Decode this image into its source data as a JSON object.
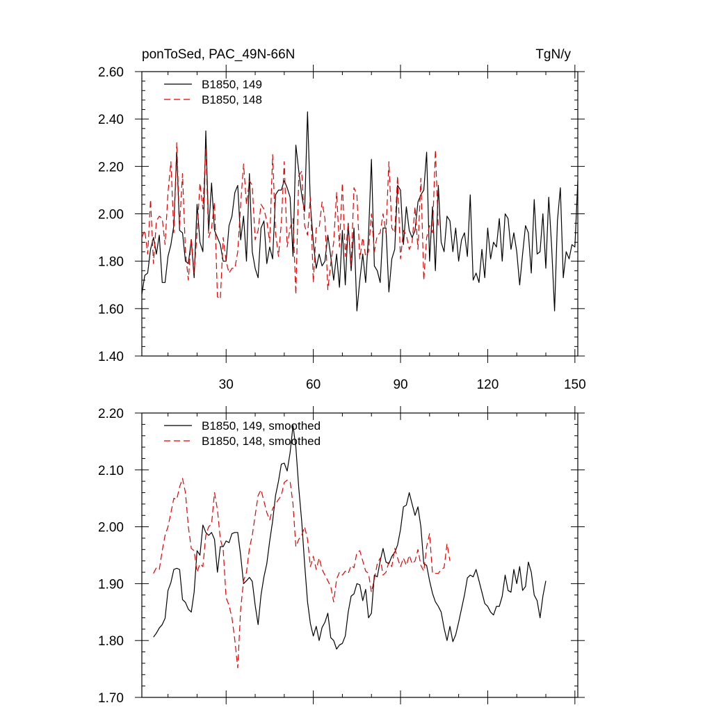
{
  "header": {
    "title_left": "ponToSed, PAC_49N-66N",
    "title_right": "TgN/y"
  },
  "chart_data": [
    {
      "type": "line",
      "panel": "top",
      "xlim": [
        1,
        151
      ],
      "ylim": [
        1.4,
        2.6
      ],
      "xticks": [
        30,
        60,
        90,
        120,
        150
      ],
      "xtick_labels": [
        "30",
        "60",
        "90",
        "120",
        "150"
      ],
      "yticks": [
        1.4,
        1.6,
        1.8,
        2.0,
        2.2,
        2.4,
        2.6
      ],
      "ytick_labels": [
        "1.40",
        "1.60",
        "1.80",
        "2.00",
        "2.20",
        "2.40",
        "2.60"
      ],
      "legend_position": "top-left",
      "series": [
        {
          "name": "B1850, 149",
          "color": "#000000",
          "dash": "solid",
          "x_start": 1,
          "values": [
            1.66,
            1.74,
            1.75,
            1.85,
            1.9,
            1.83,
            1.91,
            1.71,
            1.71,
            1.82,
            1.87,
            1.95,
            2.26,
            1.93,
            1.92,
            1.8,
            1.79,
            1.89,
            1.73,
            2.04,
            1.88,
            1.84,
            2.35,
            1.93,
            2.13,
            1.93,
            1.9,
            1.87,
            1.8,
            1.8,
            1.95,
            1.99,
            2.09,
            2.12,
            1.89,
            1.99,
            1.8,
            2.17,
            1.84,
            1.77,
            1.73,
            1.94,
            1.97,
            1.79,
            1.86,
            1.81,
            2.08,
            2.1,
            2.1,
            2.14,
            2.11,
            2.07,
            1.82,
            2.29,
            2.18,
            2.08,
            2.01,
            2.43,
            2.04,
            1.88,
            1.77,
            1.83,
            1.78,
            1.8,
            1.91,
            1.82,
            1.72,
            1.83,
            1.69,
            1.93,
            1.7,
            1.96,
            1.76,
            1.94,
            1.59,
            1.72,
            1.83,
            1.71,
            1.91,
            2.23,
            1.78,
            1.76,
            1.71,
            1.94,
            1.94,
            1.67,
            1.81,
            1.85,
            2.12,
            2.1,
            1.87,
            2.03,
            1.93,
            1.9,
            1.93,
            2.05,
            2.08,
            2.1,
            2.26,
            1.8,
            2.03,
            1.76,
            2.12,
            1.88,
            1.84,
            1.99,
            1.97,
            1.84,
            1.94,
            1.8,
            1.89,
            1.92,
            1.82,
            2.08,
            1.72,
            1.75,
            1.71,
            1.85,
            1.73,
            1.94,
            1.81,
            1.88,
            1.86,
            1.98,
            1.8,
            2.0,
            1.98,
            1.85,
            1.92,
            1.84,
            1.7,
            1.83,
            1.95,
            1.92,
            1.75,
            2.06,
            1.83,
            1.84,
            2.0,
            1.77,
            2.07,
            1.86,
            1.59,
            1.97,
            2.11,
            1.73,
            1.84,
            1.81,
            1.87,
            1.86,
            2.14
          ]
        },
        {
          "name": "B1850, 148",
          "color": "#e00000",
          "dash": "dashed",
          "x_start": 1,
          "values": [
            1.9,
            1.93,
            1.83,
            2.06,
            1.79,
            1.97,
            1.99,
            1.98,
            1.87,
            2.09,
            2.22,
            1.92,
            2.3,
            1.95,
            2.17,
            1.84,
            1.72,
            1.9,
            1.75,
            1.92,
            2.13,
            2.02,
            2.28,
            1.9,
            1.94,
            2.05,
            1.65,
            1.64,
            1.9,
            1.8,
            1.75,
            1.77,
            1.77,
            1.84,
            2.04,
            2.21,
            2.04,
            2.14,
            2.12,
            1.89,
            1.93,
            2.04,
            2.02,
            1.97,
            1.88,
            2.25,
            1.92,
            1.82,
            1.96,
            2.22,
            1.86,
            1.94,
            1.98,
            1.66,
            2.16,
            2.18,
            1.95,
            1.91,
            2.07,
            1.71,
            1.94,
            1.94,
            2.05,
            1.98,
            1.68,
            1.79,
            1.88,
            2.09,
            1.86,
            2.13,
            1.82,
            1.96,
            1.78,
            2.11,
            2.08,
            1.81,
            1.9,
            1.82,
            1.84,
            2.0,
            1.84,
            1.91,
            1.92,
            2.0,
            1.92,
            2.22,
            1.94,
            1.92,
            2.16,
            1.81,
            1.93,
            1.91,
            1.85,
            1.88,
            2.03,
            1.85,
            2.15,
            1.72,
            1.9,
            1.95,
            1.92,
            2.27,
            1.94
          ]
        }
      ]
    },
    {
      "type": "line",
      "panel": "bottom",
      "xlim": [
        1,
        151
      ],
      "ylim": [
        1.7,
        2.2
      ],
      "xticks": [
        30,
        60,
        90,
        120,
        150
      ],
      "yticks": [
        1.7,
        1.8,
        1.9,
        2.0,
        2.1,
        2.2
      ],
      "ytick_labels": [
        "1.70",
        "1.80",
        "1.90",
        "2.00",
        "2.10",
        "2.20"
      ],
      "legend_position": "top-left",
      "series": [
        {
          "name": "B1850, 149, smoothed",
          "color": "#000000",
          "dash": "solid",
          "x_start": 5,
          "values": [
            1.806,
            1.813,
            1.822,
            1.828,
            1.839,
            1.888,
            1.902,
            1.925,
            1.927,
            1.925,
            1.872,
            1.867,
            1.855,
            1.85,
            1.885,
            1.958,
            1.95,
            2.003,
            1.99,
            1.985,
            1.99,
            1.978,
            1.92,
            1.965,
            1.965,
            1.975,
            1.972,
            1.988,
            1.99,
            1.99,
            1.95,
            1.9,
            1.905,
            1.911,
            1.904,
            1.862,
            1.828,
            1.88,
            1.912,
            1.935,
            1.975,
            2.01,
            2.055,
            2.08,
            2.11,
            2.112,
            2.098,
            2.13,
            2.178,
            2.14,
            2.068,
            2.01,
            1.935,
            1.868,
            1.83,
            1.808,
            1.825,
            1.8,
            1.823,
            1.832,
            1.848,
            1.805,
            1.8,
            1.785,
            1.792,
            1.795,
            1.808,
            1.85,
            1.878,
            1.882,
            1.9,
            1.898,
            1.87,
            1.89,
            1.84,
            1.848,
            1.915,
            1.912,
            1.94,
            1.962,
            1.938,
            1.935,
            1.948,
            1.955,
            1.968,
            1.995,
            2.035,
            2.038,
            2.06,
            2.04,
            2.02,
            2.035,
            2.0,
            1.935,
            1.932,
            1.905,
            1.883,
            1.868,
            1.86,
            1.85,
            1.822,
            1.8,
            1.825,
            1.798,
            1.81,
            1.832,
            1.856,
            1.88,
            1.91,
            1.915,
            1.912,
            1.925,
            1.905,
            1.885,
            1.865,
            1.86,
            1.85,
            1.845,
            1.86,
            1.86,
            1.878,
            1.915,
            1.888,
            1.885,
            1.925,
            1.9,
            1.93,
            1.888,
            1.895,
            1.938,
            1.92,
            1.88,
            1.87,
            1.84,
            1.878,
            1.905
          ]
        },
        {
          "name": "B1850, 148, smoothed",
          "color": "#e00000",
          "dash": "dashed",
          "x_start": 5,
          "values": [
            1.918,
            1.928,
            1.925,
            1.958,
            1.985,
            2.0,
            2.025,
            2.05,
            2.048,
            2.07,
            2.085,
            2.06,
            2.0,
            1.962,
            1.958,
            1.92,
            1.935,
            1.93,
            1.985,
            2.0,
            2.005,
            2.06,
            2.03,
            1.978,
            1.96,
            1.875,
            1.862,
            1.84,
            1.8,
            1.752,
            1.855,
            1.905,
            1.92,
            1.962,
            1.985,
            2.02,
            2.055,
            2.065,
            2.045,
            2.025,
            2.012,
            2.032,
            2.04,
            2.048,
            2.055,
            2.078,
            2.082,
            2.08,
            2.04,
            1.965,
            1.978,
            1.985,
            2.0,
            1.978,
            1.93,
            1.948,
            1.925,
            1.945,
            1.925,
            1.915,
            1.905,
            1.895,
            1.868,
            1.908,
            1.92,
            1.915,
            1.922,
            1.918,
            1.932,
            1.928,
            1.955,
            1.958,
            1.94,
            1.922,
            1.918,
            1.885,
            1.908,
            1.935,
            1.945,
            1.915,
            1.92,
            1.938,
            1.93,
            1.962,
            1.945,
            1.93,
            1.945,
            1.932,
            1.95,
            1.935,
            1.94,
            1.96,
            1.932,
            1.922,
            1.965,
            1.988,
            1.918,
            1.918,
            1.918,
            1.925,
            1.928,
            1.97,
            1.94
          ]
        }
      ]
    }
  ]
}
